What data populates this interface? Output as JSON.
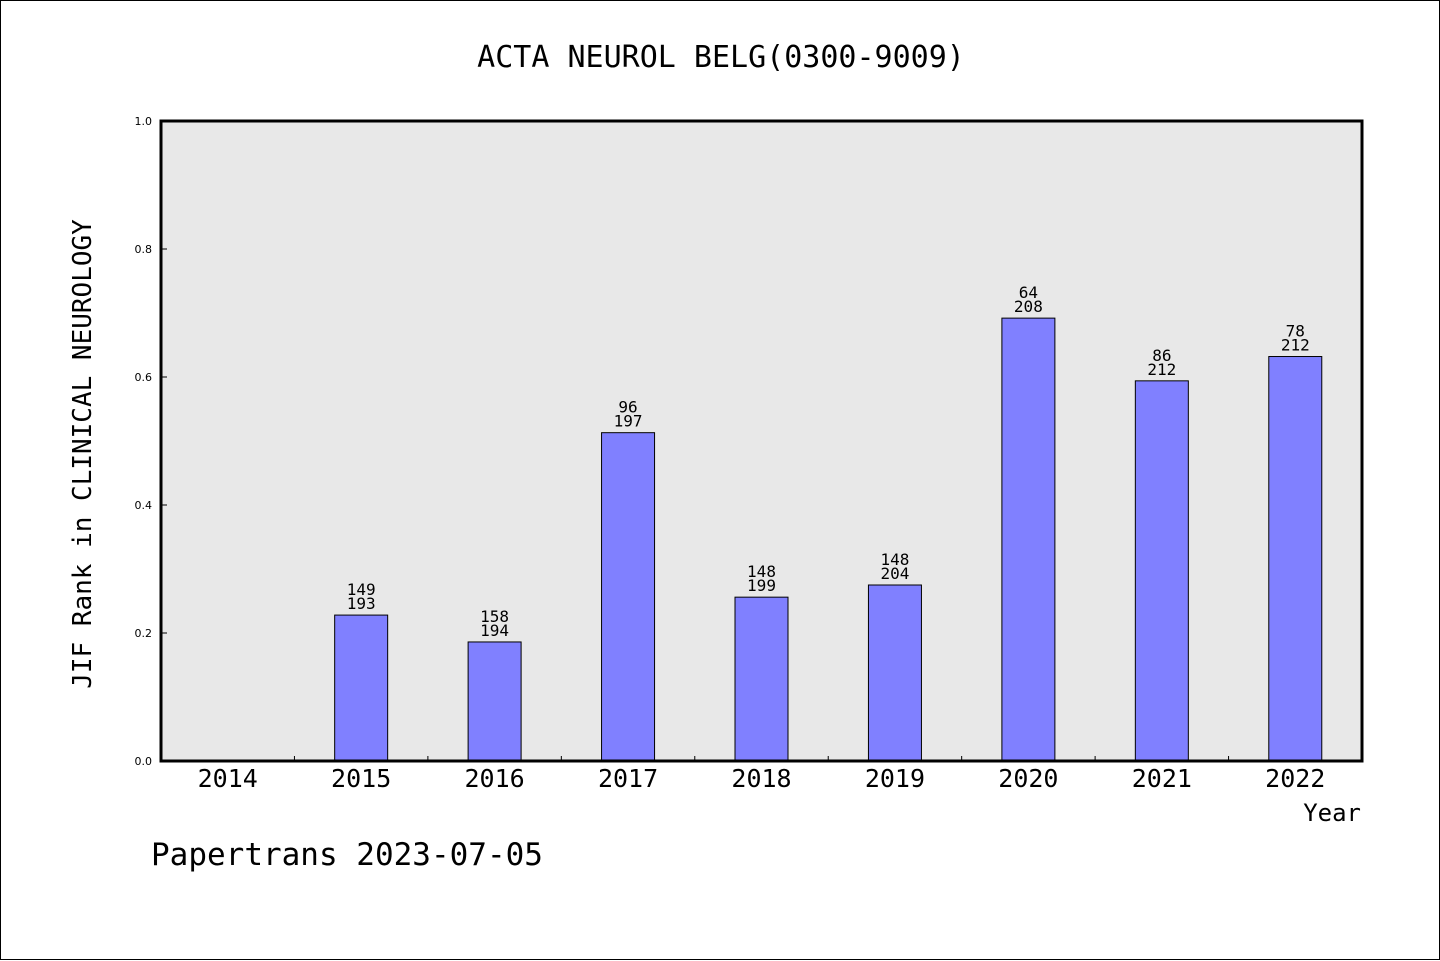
{
  "chart_data": {
    "type": "bar",
    "title": "ACTA NEUROL BELG(0300-9009)",
    "xlabel": "Year",
    "ylabel": "JIF Rank in CLINICAL NEUROLOGY",
    "ylim": [
      0,
      1.0
    ],
    "yticks": [
      "0.0",
      "0.2",
      "0.4",
      "0.6",
      "0.8",
      "1.0"
    ],
    "categories": [
      "2014",
      "2015",
      "2016",
      "2017",
      "2018",
      "2019",
      "2020",
      "2021",
      "2022"
    ],
    "values": [
      null,
      0.228,
      0.186,
      0.513,
      0.256,
      0.275,
      0.692,
      0.594,
      0.632
    ],
    "rank_labels": [
      "",
      "149",
      "158",
      "96",
      "148",
      "148",
      "64",
      "86",
      "78"
    ],
    "total_labels": [
      "",
      "193",
      "194",
      "197",
      "199",
      "204",
      "208",
      "212",
      "212"
    ],
    "bar_color": "#8080ff",
    "plot_background": "#e8e8e8",
    "grid": false,
    "legend": "none"
  },
  "footer": {
    "text": "Papertrans 2023-07-05"
  }
}
